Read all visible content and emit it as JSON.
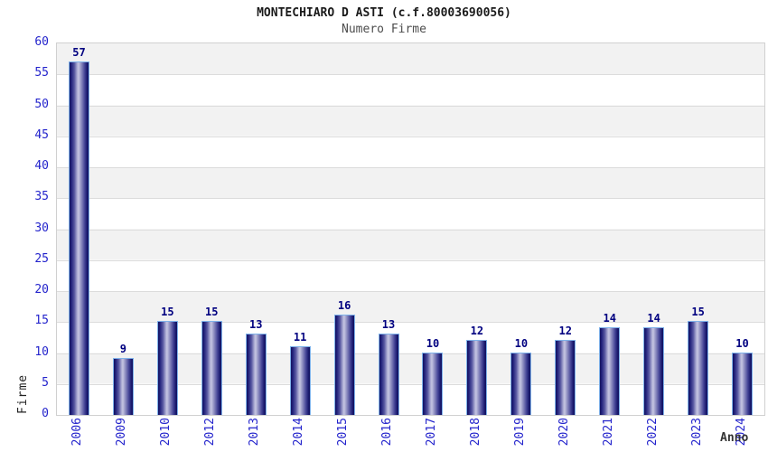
{
  "chart_data": {
    "type": "bar",
    "title": "MONTECHIARO D ASTI (c.f.80003690056)",
    "subtitle": "Numero Firme",
    "xlabel": "Anno",
    "ylabel": "Firme",
    "categories": [
      "2006",
      "2009",
      "2010",
      "2012",
      "2013",
      "2014",
      "2015",
      "2016",
      "2017",
      "2018",
      "2019",
      "2020",
      "2021",
      "2022",
      "2023",
      "2024"
    ],
    "values": [
      57,
      9,
      15,
      15,
      13,
      11,
      16,
      13,
      10,
      12,
      10,
      12,
      14,
      14,
      15,
      10
    ],
    "ylim": [
      0,
      60
    ],
    "yticks": [
      0,
      5,
      10,
      15,
      20,
      25,
      30,
      35,
      40,
      45,
      50,
      55,
      60
    ],
    "bar_value_labels_shown": true,
    "grid": "horizontal gridlines every 5 units over alternating gray/white bands",
    "legend_position": "none",
    "colors": {
      "bar_edge_dark": "#12125f",
      "bar_highlight": "#c6c6e2",
      "bar_border": "#7fb2ea",
      "axis_tick_text": "#2424cc",
      "value_label_text": "#000080",
      "band_gray": "#f2f2f2",
      "band_white": "#ffffff",
      "gridline": "#dcdcdc",
      "title_text": "#1a1a1a",
      "subtitle_text": "#4d4d4d",
      "axis_title_text": "#333333"
    }
  }
}
